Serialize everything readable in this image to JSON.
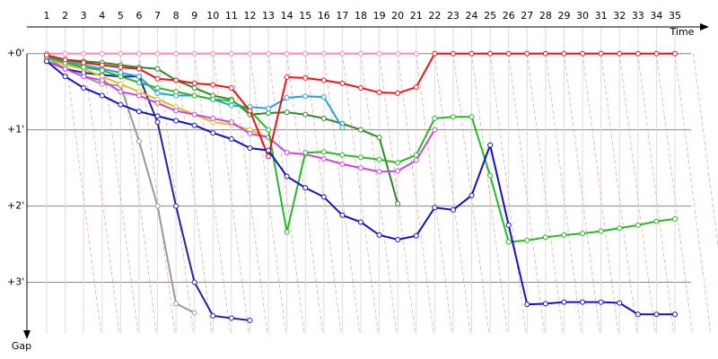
{
  "chart_data": {
    "type": "line",
    "x_label": "Time",
    "y_label": "Gap",
    "categories": [
      "1",
      "2",
      "3",
      "4",
      "5",
      "6",
      "7",
      "8",
      "9",
      "10",
      "11",
      "12",
      "13",
      "14",
      "15",
      "16",
      "17",
      "18",
      "19",
      "20",
      "21",
      "22",
      "23",
      "24",
      "25",
      "26",
      "27",
      "28",
      "29",
      "30",
      "31",
      "32",
      "33",
      "34",
      "35"
    ],
    "ylim": [
      -0.35,
      3.7
    ],
    "yticks": [
      {
        "value": 0,
        "label": "+0'"
      },
      {
        "value": 1,
        "label": "+1'"
      },
      {
        "value": 2,
        "label": "+2'"
      },
      {
        "value": 3,
        "label": "+3'"
      }
    ],
    "grid": true,
    "series": [
      {
        "color": "#ff88bb",
        "values": [
          0,
          0,
          0,
          0,
          0,
          0,
          0,
          0,
          0,
          0,
          0,
          0,
          0,
          0,
          0,
          0,
          0,
          0,
          0,
          0,
          0,
          null,
          null,
          null,
          null,
          null,
          null,
          null,
          null,
          null,
          null,
          null,
          null,
          null,
          null
        ]
      },
      {
        "color": "#999999",
        "values": [
          0.05,
          0.2,
          0.3,
          0.4,
          0.42,
          1.15,
          2.0,
          3.28,
          3.4,
          null,
          null,
          null,
          null,
          null,
          null,
          null,
          null,
          null,
          null,
          null,
          null,
          null,
          null,
          null,
          null,
          null,
          null,
          null,
          null,
          null,
          null,
          null,
          null,
          null,
          null
        ]
      },
      {
        "color": "#2222aa",
        "values": [
          0.1,
          0.2,
          0.25,
          0.28,
          0.3,
          0.3,
          0.9,
          2.0,
          3.0,
          3.44,
          3.47,
          3.5,
          null,
          null,
          null,
          null,
          null,
          null,
          null,
          null,
          null,
          null,
          null,
          null,
          null,
          null,
          null,
          null,
          null,
          null,
          null,
          null,
          null,
          null,
          null
        ]
      },
      {
        "color": "#e0c020",
        "values": [
          0.05,
          0.15,
          0.2,
          0.3,
          0.4,
          0.5,
          0.6,
          0.7,
          0.8,
          0.9,
          0.93,
          1.0,
          1.1,
          null,
          null,
          null,
          null,
          null,
          null,
          null,
          null,
          null,
          null,
          null,
          null,
          null,
          null,
          null,
          null,
          null,
          null,
          null,
          null,
          null,
          null
        ]
      },
      {
        "color": "#2a8a2a",
        "values": [
          0.05,
          0.08,
          0.1,
          0.12,
          0.15,
          0.18,
          0.2,
          0.35,
          0.45,
          0.55,
          0.6,
          0.8,
          0.78,
          0.77,
          0.8,
          0.85,
          0.92,
          1.0,
          1.1,
          1.97,
          null,
          null,
          null,
          null,
          null,
          null,
          null,
          null,
          null,
          null,
          null,
          null,
          null,
          null,
          null
        ]
      },
      {
        "color": "#22a0e8",
        "values": [
          0.05,
          0.1,
          0.15,
          0.2,
          0.25,
          0.3,
          0.52,
          0.55,
          0.55,
          0.6,
          0.68,
          0.7,
          0.72,
          0.58,
          0.56,
          0.57,
          0.97,
          null,
          null,
          null,
          null,
          null,
          null,
          null,
          null,
          null,
          null,
          null,
          null,
          null,
          null,
          null,
          null,
          null,
          null
        ]
      },
      {
        "color": "#cc44dd",
        "values": [
          0.1,
          0.2,
          0.3,
          0.35,
          0.5,
          0.55,
          0.65,
          0.75,
          0.8,
          0.85,
          0.9,
          1.05,
          1.1,
          1.3,
          1.32,
          1.38,
          1.45,
          1.5,
          1.55,
          1.54,
          1.4,
          1.0,
          null,
          null,
          null,
          null,
          null,
          null,
          null,
          null,
          null,
          null,
          null,
          null,
          null
        ]
      },
      {
        "color": "#22bb22",
        "values": [
          0.05,
          0.12,
          0.18,
          0.22,
          0.3,
          0.38,
          0.45,
          0.5,
          0.55,
          0.6,
          0.62,
          0.75,
          1.0,
          2.34,
          1.3,
          1.29,
          1.33,
          1.36,
          1.39,
          1.43,
          1.33,
          0.85,
          0.83,
          0.83,
          1.6,
          2.47,
          2.45,
          2.41,
          2.38,
          2.36,
          2.33,
          2.29,
          2.25,
          2.2,
          2.17
        ]
      },
      {
        "color": "#ee1111",
        "values": [
          0.02,
          0.08,
          0.12,
          0.15,
          0.18,
          0.2,
          0.33,
          0.35,
          0.39,
          0.41,
          0.45,
          0.75,
          1.35,
          0.31,
          0.32,
          0.35,
          0.39,
          0.45,
          0.51,
          0.52,
          0.44,
          0,
          0,
          0,
          0,
          0,
          0,
          0,
          0,
          0,
          0,
          0,
          0,
          0,
          0
        ]
      },
      {
        "color": "#1111cc",
        "values": [
          0.1,
          0.3,
          0.45,
          0.55,
          0.67,
          0.76,
          0.82,
          0.88,
          0.94,
          1.04,
          1.12,
          1.24,
          1.27,
          1.61,
          1.76,
          1.88,
          2.12,
          2.21,
          2.38,
          2.44,
          2.39,
          2.02,
          2.05,
          1.86,
          1.2,
          2.25,
          3.29,
          3.28,
          3.26,
          3.26,
          3.26,
          3.27,
          3.42,
          3.42,
          3.42
        ]
      }
    ]
  }
}
